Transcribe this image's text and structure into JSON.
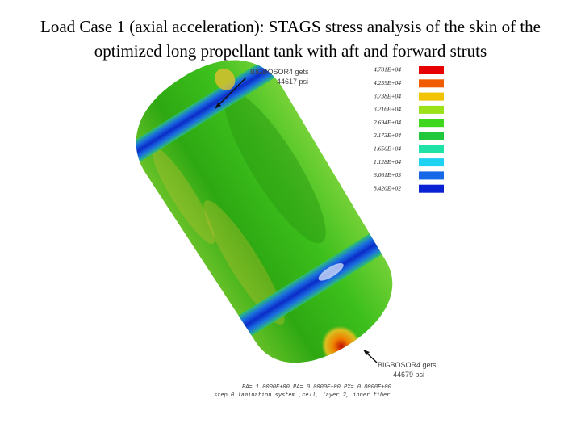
{
  "title": "Load Case 1 (axial acceleration): STAGS stress analysis of the skin of the optimized long propellant tank with aft and forward struts",
  "legend": [
    {
      "label": "4.781E+04",
      "color": "#e60000"
    },
    {
      "label": "4.259E+04",
      "color": "#f25c00"
    },
    {
      "label": "3.738E+04",
      "color": "#f0c400"
    },
    {
      "label": "3.216E+04",
      "color": "#9be21a"
    },
    {
      "label": "2.694E+04",
      "color": "#3fd61e"
    },
    {
      "label": "2.173E+04",
      "color": "#22c83c"
    },
    {
      "label": "1.650E+04",
      "color": "#1fe3a6"
    },
    {
      "label": "1.128E+04",
      "color": "#20d2f2"
    },
    {
      "label": "6.061E+03",
      "color": "#1668e6"
    },
    {
      "label": "8.420E+02",
      "color": "#0a22d4"
    }
  ],
  "annotations": [
    {
      "line1": "BIGBOSOR4 gets",
      "line2": "44617 psi"
    },
    {
      "line1": "BIGBOSOR4 gets",
      "line2": "44679 psi"
    }
  ],
  "footer": [
    "PA=  1.0000E+00  PA=  0.0000E+00  PX=  0.0000E+00",
    "step    0  lamination system ,cell, layer  2,  inner fiber"
  ]
}
